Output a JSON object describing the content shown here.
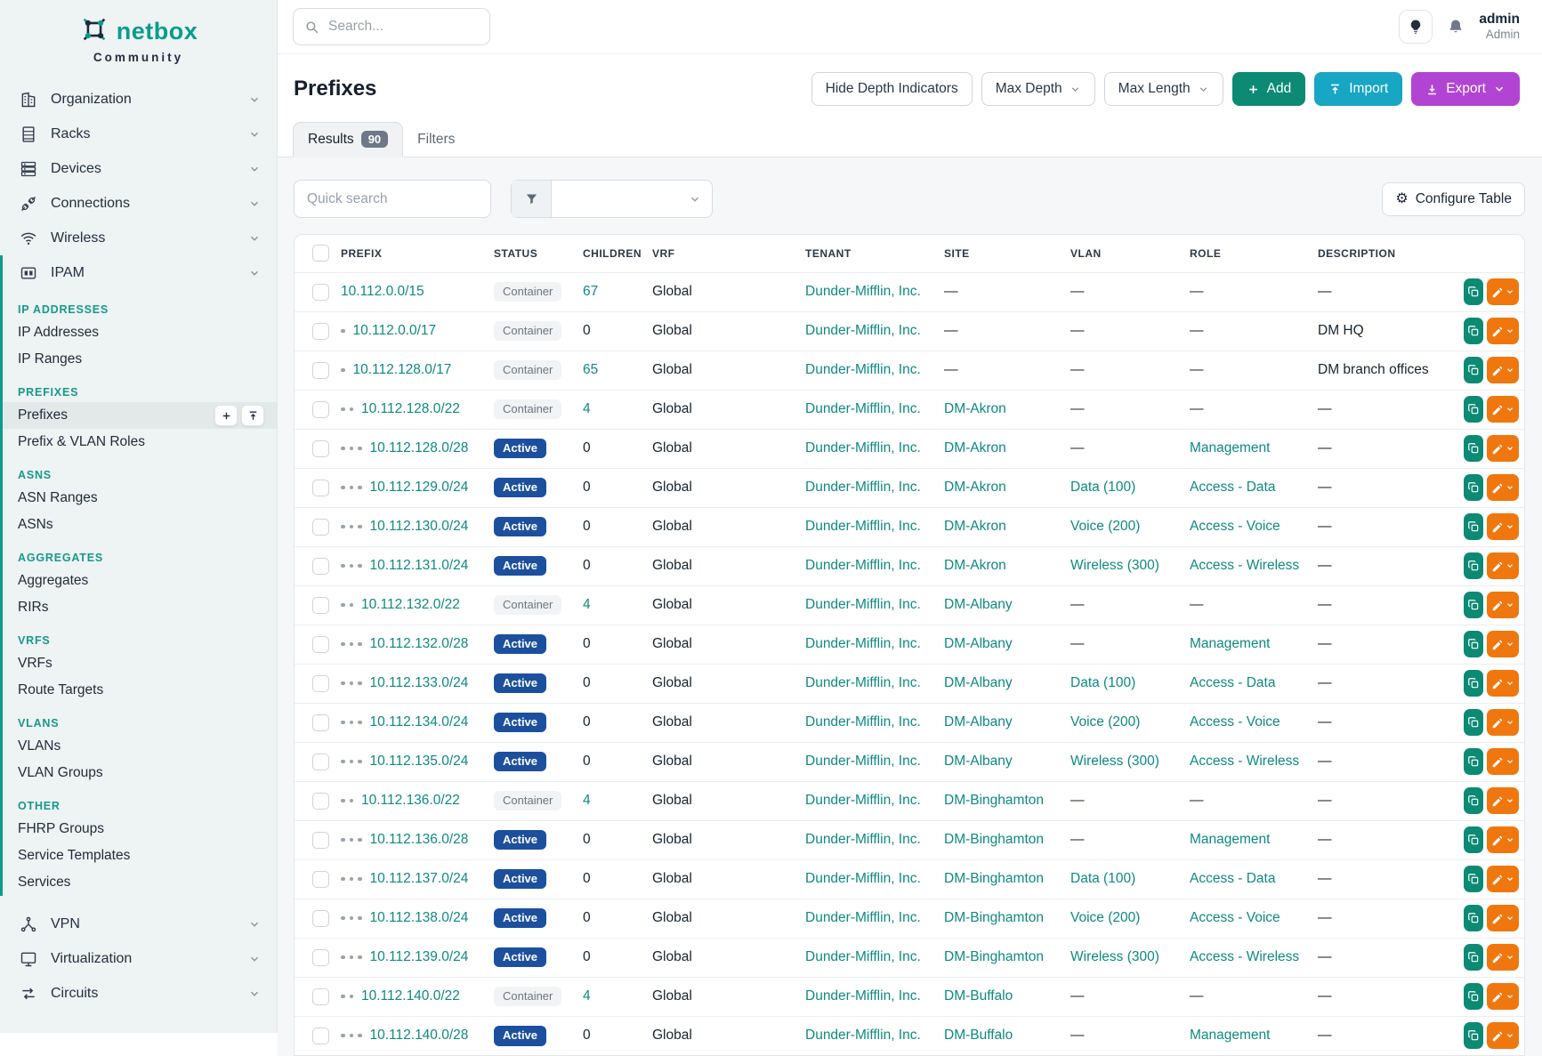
{
  "brand": {
    "name": "netbox",
    "subtitle": "Community"
  },
  "topbar": {
    "search_placeholder": "Search...",
    "user": {
      "name": "admin",
      "role": "Admin"
    }
  },
  "sidebar": {
    "top_items": [
      {
        "label": "Organization",
        "icon": "building"
      },
      {
        "label": "Racks",
        "icon": "rack"
      },
      {
        "label": "Devices",
        "icon": "devices"
      },
      {
        "label": "Connections",
        "icon": "connections"
      },
      {
        "label": "Wireless",
        "icon": "wifi"
      }
    ],
    "ipam": {
      "label": "IPAM",
      "icon": "ipam",
      "sections": [
        {
          "header": "IP ADDRESSES",
          "items": [
            {
              "label": "IP Addresses"
            },
            {
              "label": "IP Ranges"
            }
          ]
        },
        {
          "header": "PREFIXES",
          "items": [
            {
              "label": "Prefixes",
              "active": true
            },
            {
              "label": "Prefix & VLAN Roles"
            }
          ]
        },
        {
          "header": "ASNS",
          "items": [
            {
              "label": "ASN Ranges"
            },
            {
              "label": "ASNs"
            }
          ]
        },
        {
          "header": "AGGREGATES",
          "items": [
            {
              "label": "Aggregates"
            },
            {
              "label": "RIRs"
            }
          ]
        },
        {
          "header": "VRFS",
          "items": [
            {
              "label": "VRFs"
            },
            {
              "label": "Route Targets"
            }
          ]
        },
        {
          "header": "VLANS",
          "items": [
            {
              "label": "VLANs"
            },
            {
              "label": "VLAN Groups"
            }
          ]
        },
        {
          "header": "OTHER",
          "items": [
            {
              "label": "FHRP Groups"
            },
            {
              "label": "Service Templates"
            },
            {
              "label": "Services"
            }
          ]
        }
      ]
    },
    "bottom_items": [
      {
        "label": "VPN",
        "icon": "vpn"
      },
      {
        "label": "Virtualization",
        "icon": "virtualization"
      },
      {
        "label": "Circuits",
        "icon": "circuits"
      }
    ]
  },
  "page": {
    "title": "Prefixes",
    "toolbar": {
      "hide_depth": "Hide Depth Indicators",
      "max_depth": "Max Depth",
      "max_length": "Max Length",
      "add": "Add",
      "import": "Import",
      "export": "Export"
    },
    "tabs": {
      "results": "Results",
      "results_count": "90",
      "filters": "Filters"
    },
    "quick_search_placeholder": "Quick search",
    "configure_table": "Configure Table"
  },
  "table": {
    "columns": [
      "PREFIX",
      "STATUS",
      "CHILDREN",
      "VRF",
      "TENANT",
      "SITE",
      "VLAN",
      "ROLE",
      "DESCRIPTION"
    ],
    "rows": [
      {
        "depth": 0,
        "prefix": "10.112.0.0/15",
        "status": "Container",
        "children": "67",
        "children_link": true,
        "vrf": "Global",
        "tenant": "Dunder-Mifflin, Inc.",
        "site": "—",
        "vlan": "—",
        "role": "—",
        "description": "—"
      },
      {
        "depth": 1,
        "prefix": "10.112.0.0/17",
        "status": "Container",
        "children": "0",
        "children_link": false,
        "vrf": "Global",
        "tenant": "Dunder-Mifflin, Inc.",
        "site": "—",
        "vlan": "—",
        "role": "—",
        "description": "DM HQ"
      },
      {
        "depth": 1,
        "prefix": "10.112.128.0/17",
        "status": "Container",
        "children": "65",
        "children_link": true,
        "vrf": "Global",
        "tenant": "Dunder-Mifflin, Inc.",
        "site": "—",
        "vlan": "—",
        "role": "—",
        "description": "DM branch offices"
      },
      {
        "depth": 2,
        "prefix": "10.112.128.0/22",
        "status": "Container",
        "children": "4",
        "children_link": true,
        "vrf": "Global",
        "tenant": "Dunder-Mifflin, Inc.",
        "site": "DM-Akron",
        "vlan": "—",
        "role": "—",
        "description": "—"
      },
      {
        "depth": 3,
        "prefix": "10.112.128.0/28",
        "status": "Active",
        "children": "0",
        "children_link": false,
        "vrf": "Global",
        "tenant": "Dunder-Mifflin, Inc.",
        "site": "DM-Akron",
        "vlan": "—",
        "role": "Management",
        "description": "—"
      },
      {
        "depth": 3,
        "prefix": "10.112.129.0/24",
        "status": "Active",
        "children": "0",
        "children_link": false,
        "vrf": "Global",
        "tenant": "Dunder-Mifflin, Inc.",
        "site": "DM-Akron",
        "vlan": "Data (100)",
        "role": "Access - Data",
        "description": "—"
      },
      {
        "depth": 3,
        "prefix": "10.112.130.0/24",
        "status": "Active",
        "children": "0",
        "children_link": false,
        "vrf": "Global",
        "tenant": "Dunder-Mifflin, Inc.",
        "site": "DM-Akron",
        "vlan": "Voice (200)",
        "role": "Access - Voice",
        "description": "—"
      },
      {
        "depth": 3,
        "prefix": "10.112.131.0/24",
        "status": "Active",
        "children": "0",
        "children_link": false,
        "vrf": "Global",
        "tenant": "Dunder-Mifflin, Inc.",
        "site": "DM-Akron",
        "vlan": "Wireless (300)",
        "role": "Access - Wireless",
        "description": "—"
      },
      {
        "depth": 2,
        "prefix": "10.112.132.0/22",
        "status": "Container",
        "children": "4",
        "children_link": true,
        "vrf": "Global",
        "tenant": "Dunder-Mifflin, Inc.",
        "site": "DM-Albany",
        "vlan": "—",
        "role": "—",
        "description": "—"
      },
      {
        "depth": 3,
        "prefix": "10.112.132.0/28",
        "status": "Active",
        "children": "0",
        "children_link": false,
        "vrf": "Global",
        "tenant": "Dunder-Mifflin, Inc.",
        "site": "DM-Albany",
        "vlan": "—",
        "role": "Management",
        "description": "—"
      },
      {
        "depth": 3,
        "prefix": "10.112.133.0/24",
        "status": "Active",
        "children": "0",
        "children_link": false,
        "vrf": "Global",
        "tenant": "Dunder-Mifflin, Inc.",
        "site": "DM-Albany",
        "vlan": "Data (100)",
        "role": "Access - Data",
        "description": "—"
      },
      {
        "depth": 3,
        "prefix": "10.112.134.0/24",
        "status": "Active",
        "children": "0",
        "children_link": false,
        "vrf": "Global",
        "tenant": "Dunder-Mifflin, Inc.",
        "site": "DM-Albany",
        "vlan": "Voice (200)",
        "role": "Access - Voice",
        "description": "—"
      },
      {
        "depth": 3,
        "prefix": "10.112.135.0/24",
        "status": "Active",
        "children": "0",
        "children_link": false,
        "vrf": "Global",
        "tenant": "Dunder-Mifflin, Inc.",
        "site": "DM-Albany",
        "vlan": "Wireless (300)",
        "role": "Access - Wireless",
        "description": "—"
      },
      {
        "depth": 2,
        "prefix": "10.112.136.0/22",
        "status": "Container",
        "children": "4",
        "children_link": true,
        "vrf": "Global",
        "tenant": "Dunder-Mifflin, Inc.",
        "site": "DM-Binghamton",
        "vlan": "—",
        "role": "—",
        "description": "—"
      },
      {
        "depth": 3,
        "prefix": "10.112.136.0/28",
        "status": "Active",
        "children": "0",
        "children_link": false,
        "vrf": "Global",
        "tenant": "Dunder-Mifflin, Inc.",
        "site": "DM-Binghamton",
        "vlan": "—",
        "role": "Management",
        "description": "—"
      },
      {
        "depth": 3,
        "prefix": "10.112.137.0/24",
        "status": "Active",
        "children": "0",
        "children_link": false,
        "vrf": "Global",
        "tenant": "Dunder-Mifflin, Inc.",
        "site": "DM-Binghamton",
        "vlan": "Data (100)",
        "role": "Access - Data",
        "description": "—"
      },
      {
        "depth": 3,
        "prefix": "10.112.138.0/24",
        "status": "Active",
        "children": "0",
        "children_link": false,
        "vrf": "Global",
        "tenant": "Dunder-Mifflin, Inc.",
        "site": "DM-Binghamton",
        "vlan": "Voice (200)",
        "role": "Access - Voice",
        "description": "—"
      },
      {
        "depth": 3,
        "prefix": "10.112.139.0/24",
        "status": "Active",
        "children": "0",
        "children_link": false,
        "vrf": "Global",
        "tenant": "Dunder-Mifflin, Inc.",
        "site": "DM-Binghamton",
        "vlan": "Wireless (300)",
        "role": "Access - Wireless",
        "description": "—"
      },
      {
        "depth": 2,
        "prefix": "10.112.140.0/22",
        "status": "Container",
        "children": "4",
        "children_link": true,
        "vrf": "Global",
        "tenant": "Dunder-Mifflin, Inc.",
        "site": "DM-Buffalo",
        "vlan": "—",
        "role": "—",
        "description": "—"
      },
      {
        "depth": 3,
        "prefix": "10.112.140.0/28",
        "status": "Active",
        "children": "0",
        "children_link": false,
        "vrf": "Global",
        "tenant": "Dunder-Mifflin, Inc.",
        "site": "DM-Buffalo",
        "vlan": "—",
        "role": "Management",
        "description": "—"
      }
    ]
  },
  "colors": {
    "brand_teal": "#0a9c8f",
    "link_teal": "#0e8a80",
    "add_button": "#0c8a74",
    "import_button": "#17a6c3",
    "export_button": "#b244d4",
    "edit_button": "#f0770e",
    "active_badge": "#1c509e",
    "container_badge_bg": "#f1f3f5"
  }
}
